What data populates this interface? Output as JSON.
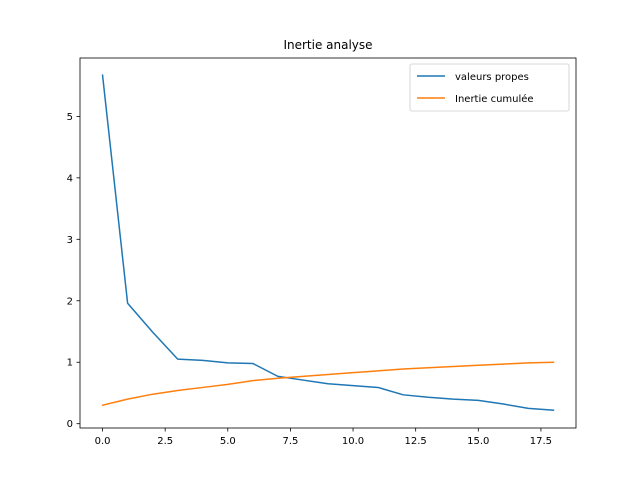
{
  "chart_data": {
    "type": "line",
    "title": "Inertie analyse",
    "xlabel": "",
    "ylabel": "",
    "xlim": [
      -0.9,
      18.9
    ],
    "ylim": [
      -0.07,
      5.95
    ],
    "xticks": [
      0.0,
      2.5,
      5.0,
      7.5,
      10.0,
      12.5,
      15.0,
      17.5
    ],
    "xtick_labels": [
      "0.0",
      "2.5",
      "5.0",
      "7.5",
      "10.0",
      "12.5",
      "15.0",
      "17.5"
    ],
    "yticks": [
      0,
      1,
      2,
      3,
      4,
      5
    ],
    "ytick_labels": [
      "0",
      "1",
      "2",
      "3",
      "4",
      "5"
    ],
    "grid": false,
    "legend_position": "top-right",
    "x": [
      0,
      1,
      2,
      3,
      4,
      5,
      6,
      7,
      8,
      9,
      10,
      11,
      12,
      13,
      14,
      15,
      16,
      17,
      18
    ],
    "series": [
      {
        "name": "valeurs propes",
        "color": "#1f77b4",
        "values": [
          5.67,
          1.96,
          1.49,
          1.05,
          1.03,
          0.99,
          0.98,
          0.77,
          0.71,
          0.65,
          0.62,
          0.59,
          0.47,
          0.43,
          0.4,
          0.38,
          0.32,
          0.25,
          0.22
        ]
      },
      {
        "name": "Inertie cumulée",
        "color": "#ff7f0e",
        "values": [
          0.3,
          0.4,
          0.48,
          0.54,
          0.59,
          0.64,
          0.7,
          0.74,
          0.77,
          0.8,
          0.83,
          0.86,
          0.89,
          0.91,
          0.93,
          0.95,
          0.97,
          0.99,
          1.0
        ]
      }
    ]
  }
}
